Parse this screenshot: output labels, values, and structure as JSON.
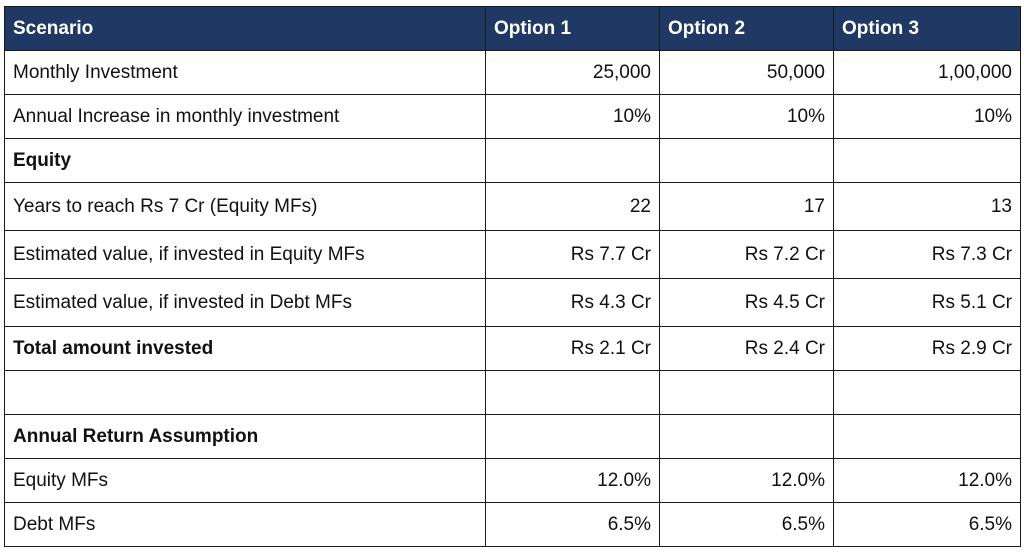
{
  "header": {
    "label": "Scenario",
    "options": [
      "Option 1",
      "Option 2",
      "Option 3"
    ]
  },
  "rows": [
    {
      "label": "Monthly Investment",
      "bold": false,
      "values": [
        "25,000",
        "50,000",
        "1,00,000"
      ]
    },
    {
      "label": "Annual Increase in monthly investment",
      "bold": false,
      "values": [
        "10%",
        "10%",
        "10%"
      ]
    },
    {
      "label": "Equity",
      "bold": true,
      "values": [
        "",
        "",
        ""
      ]
    },
    {
      "label": "Years to reach Rs 7 Cr (Equity MFs)",
      "bold": false,
      "values": [
        "22",
        "17",
        "13"
      ]
    },
    {
      "label": "Estimated value, if invested in Equity MFs",
      "bold": false,
      "values": [
        "Rs 7.7 Cr",
        "Rs 7.2 Cr",
        "Rs 7.3 Cr"
      ]
    },
    {
      "label": "Estimated value, if invested in Debt MFs",
      "bold": false,
      "values": [
        "Rs 4.3 Cr",
        "Rs 4.5 Cr",
        "Rs 5.1 Cr"
      ]
    },
    {
      "label": "Total amount invested",
      "bold": true,
      "values": [
        "Rs 2.1 Cr",
        "Rs 2.4 Cr",
        "Rs 2.9 Cr"
      ]
    },
    {
      "label": "",
      "bold": false,
      "values": [
        "",
        "",
        ""
      ]
    },
    {
      "label": "Annual Return Assumption",
      "bold": true,
      "values": [
        "",
        "",
        ""
      ]
    },
    {
      "label": "Equity MFs",
      "bold": false,
      "values": [
        "12.0%",
        "12.0%",
        "12.0%"
      ]
    },
    {
      "label": "Debt MFs",
      "bold": false,
      "values": [
        "6.5%",
        "6.5%",
        "6.5%"
      ]
    }
  ],
  "colors": {
    "header_bg": "#1f3864",
    "header_text": "#ffffff",
    "border": "#1a1a1a"
  }
}
